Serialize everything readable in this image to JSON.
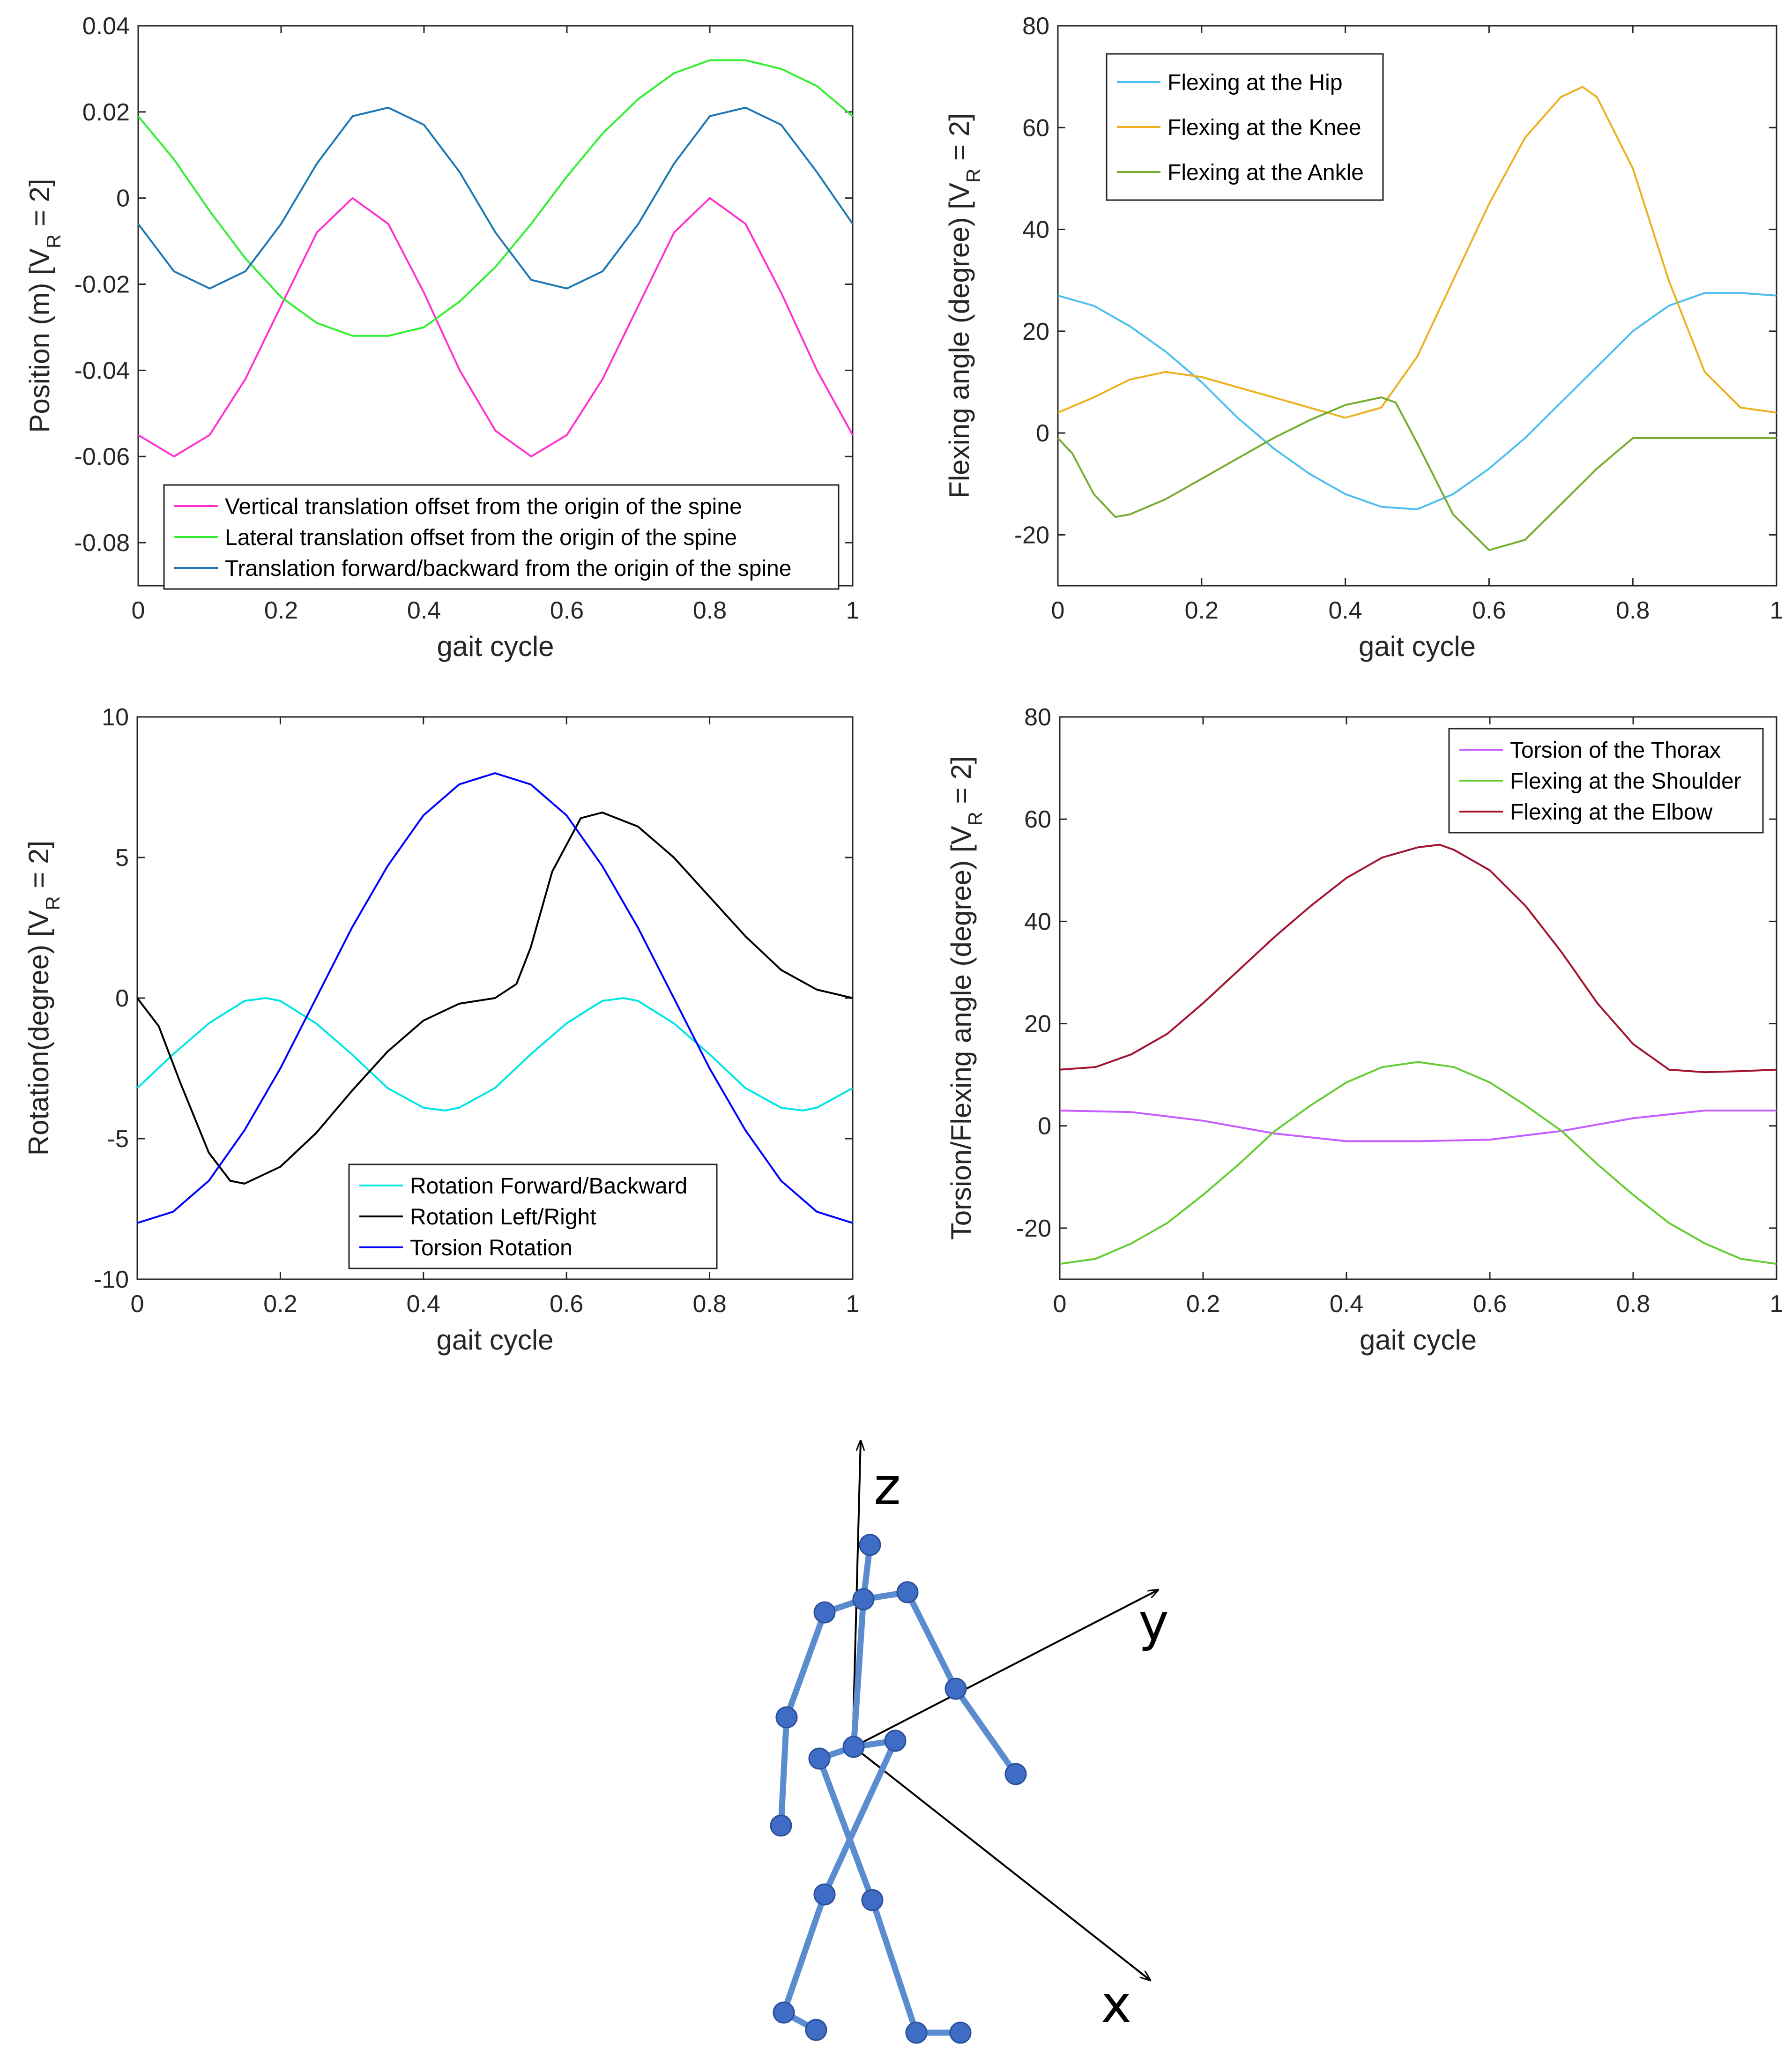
{
  "chart_data": [
    {
      "type": "line",
      "xlabel": "gait cycle",
      "ylabel": "Position (m) [V_R = 2]",
      "ylabel_parts": [
        "Position (m) [V",
        "R",
        " = 2]"
      ],
      "xlim": [
        0,
        1
      ],
      "ylim": [
        -0.09,
        0.04
      ],
      "xticks": [
        "0",
        "0.2",
        "0.4",
        "0.6",
        "0.8",
        "1"
      ],
      "xtick_values": [
        0,
        0.2,
        0.4,
        0.6,
        0.8,
        1
      ],
      "yticks": [
        "0.04",
        "0.02",
        "0",
        "-0.02",
        "-0.04",
        "-0.06",
        "-0.08"
      ],
      "ytick_values": [
        0.04,
        0.02,
        0,
        -0.02,
        -0.04,
        -0.06,
        -0.08
      ],
      "legend_location": "bottom-right",
      "series": [
        {
          "name": "Vertical translation offset from the origin of the spine",
          "color": "#ff33cc",
          "x": [
            0,
            0.05,
            0.1,
            0.15,
            0.2,
            0.25,
            0.3,
            0.35,
            0.4,
            0.45,
            0.5,
            0.55,
            0.6,
            0.65,
            0.7,
            0.75,
            0.8,
            0.85,
            0.9,
            0.95,
            1
          ],
          "y": [
            -0.055,
            -0.06,
            -0.055,
            -0.042,
            -0.025,
            -0.008,
            0,
            -0.006,
            -0.022,
            -0.04,
            -0.054,
            -0.06,
            -0.055,
            -0.042,
            -0.025,
            -0.008,
            0,
            -0.006,
            -0.022,
            -0.04,
            -0.055
          ]
        },
        {
          "name": "Lateral translation offset from the origin of the spine",
          "color": "#33ee33",
          "x": [
            0,
            0.05,
            0.1,
            0.15,
            0.2,
            0.25,
            0.3,
            0.35,
            0.4,
            0.45,
            0.5,
            0.55,
            0.6,
            0.65,
            0.7,
            0.75,
            0.8,
            0.85,
            0.9,
            0.95,
            1
          ],
          "y": [
            0.019,
            0.009,
            -0.003,
            -0.014,
            -0.023,
            -0.029,
            -0.032,
            -0.032,
            -0.03,
            -0.024,
            -0.016,
            -0.006,
            0.005,
            0.015,
            0.023,
            0.029,
            0.032,
            0.032,
            0.03,
            0.026,
            0.019
          ]
        },
        {
          "name": "Translation forward/backward from the origin of the spine",
          "color": "#1f77b4",
          "x": [
            0,
            0.05,
            0.1,
            0.15,
            0.2,
            0.25,
            0.3,
            0.35,
            0.4,
            0.45,
            0.5,
            0.55,
            0.6,
            0.65,
            0.7,
            0.75,
            0.8,
            0.85,
            0.9,
            0.95,
            1
          ],
          "y": [
            -0.006,
            -0.017,
            -0.021,
            -0.017,
            -0.006,
            0.008,
            0.019,
            0.021,
            0.017,
            0.006,
            -0.008,
            -0.019,
            -0.021,
            -0.017,
            -0.006,
            0.008,
            0.019,
            0.021,
            0.017,
            0.006,
            -0.006
          ]
        }
      ]
    },
    {
      "type": "line",
      "xlabel": "gait cycle",
      "ylabel": "Flexing angle (degree) [V_R = 2]",
      "ylabel_parts": [
        "Flexing angle (degree) [V",
        "R",
        " = 2]"
      ],
      "xlim": [
        0,
        1
      ],
      "ylim": [
        -30,
        80
      ],
      "xticks": [
        "0",
        "0.2",
        "0.4",
        "0.6",
        "0.8",
        "1"
      ],
      "xtick_values": [
        0,
        0.2,
        0.4,
        0.6,
        0.8,
        1
      ],
      "yticks": [
        "80",
        "60",
        "40",
        "20",
        "0",
        "-20"
      ],
      "ytick_values": [
        80,
        60,
        40,
        20,
        0,
        -20
      ],
      "legend_location": "top-left",
      "series": [
        {
          "name": "Flexing at the Hip",
          "color": "#4dbeee",
          "x": [
            0,
            0.05,
            0.1,
            0.15,
            0.2,
            0.25,
            0.3,
            0.35,
            0.4,
            0.45,
            0.5,
            0.55,
            0.6,
            0.65,
            0.7,
            0.75,
            0.8,
            0.85,
            0.9,
            0.95,
            1
          ],
          "y": [
            27,
            25,
            21,
            16,
            10,
            3,
            -3,
            -8,
            -12,
            -14.5,
            -15,
            -12,
            -7,
            -1,
            6,
            13,
            20,
            25,
            27.5,
            27.5,
            27
          ]
        },
        {
          "name": "Flexing at the Knee",
          "color": "#edb120",
          "x": [
            0,
            0.05,
            0.1,
            0.15,
            0.2,
            0.25,
            0.3,
            0.35,
            0.4,
            0.45,
            0.5,
            0.55,
            0.6,
            0.65,
            0.7,
            0.73,
            0.75,
            0.8,
            0.85,
            0.9,
            0.95,
            1
          ],
          "y": [
            4,
            7,
            10.5,
            12,
            11,
            9,
            7,
            5,
            3,
            5,
            15,
            30,
            45,
            58,
            66,
            68,
            66,
            52,
            30,
            12,
            5,
            4
          ]
        },
        {
          "name": "Flexing at the Ankle",
          "color": "#77ac30",
          "x": [
            0,
            0.02,
            0.05,
            0.08,
            0.1,
            0.15,
            0.2,
            0.25,
            0.3,
            0.35,
            0.4,
            0.45,
            0.47,
            0.5,
            0.55,
            0.6,
            0.65,
            0.7,
            0.75,
            0.8,
            0.85,
            0.9,
            0.95,
            1
          ],
          "y": [
            -1,
            -4,
            -12,
            -16.5,
            -16,
            -13,
            -9,
            -5,
            -1,
            2.5,
            5.5,
            7,
            6,
            -2,
            -16,
            -23,
            -21,
            -14,
            -7,
            -1,
            -1,
            -1,
            -1,
            -1
          ]
        }
      ]
    },
    {
      "type": "line",
      "xlabel": "gait cycle",
      "ylabel": "Rotation(degree) [V_R = 2]",
      "ylabel_parts": [
        "Rotation(degree) [V",
        "R",
        " = 2]"
      ],
      "xlim": [
        0,
        1
      ],
      "ylim": [
        -10,
        10
      ],
      "xticks": [
        "0",
        "0.2",
        "0.4",
        "0.6",
        "0.8",
        "1"
      ],
      "xtick_values": [
        0,
        0.2,
        0.4,
        0.6,
        0.8,
        1
      ],
      "yticks": [
        "10",
        "5",
        "0",
        "-5",
        "-10"
      ],
      "ytick_values": [
        10,
        5,
        0,
        -5,
        -10
      ],
      "legend_location": "bottom-center",
      "series": [
        {
          "name": "Rotation Forward/Backward",
          "color": "#00e5e5",
          "x": [
            0,
            0.05,
            0.1,
            0.15,
            0.18,
            0.2,
            0.25,
            0.3,
            0.35,
            0.4,
            0.43,
            0.45,
            0.5,
            0.55,
            0.6,
            0.65,
            0.68,
            0.7,
            0.75,
            0.8,
            0.85,
            0.9,
            0.93,
            0.95,
            1
          ],
          "y": [
            -3.2,
            -2,
            -0.9,
            -0.1,
            0,
            -0.1,
            -0.9,
            -2,
            -3.2,
            -3.9,
            -4,
            -3.9,
            -3.2,
            -2,
            -0.9,
            -0.1,
            0,
            -0.1,
            -0.9,
            -2,
            -3.2,
            -3.9,
            -4,
            -3.9,
            -3.2
          ]
        },
        {
          "name": "Rotation Left/Right",
          "color": "#000000",
          "x": [
            0,
            0.03,
            0.06,
            0.1,
            0.13,
            0.15,
            0.2,
            0.25,
            0.3,
            0.35,
            0.4,
            0.45,
            0.5,
            0.53,
            0.55,
            0.58,
            0.62,
            0.65,
            0.7,
            0.75,
            0.8,
            0.85,
            0.9,
            0.95,
            1
          ],
          "y": [
            0,
            -1,
            -3,
            -5.5,
            -6.5,
            -6.6,
            -6,
            -4.8,
            -3.3,
            -1.9,
            -0.8,
            -0.2,
            0,
            0.5,
            1.8,
            4.5,
            6.4,
            6.6,
            6.1,
            5,
            3.6,
            2.2,
            1,
            0.3,
            0
          ]
        },
        {
          "name": "Torsion Rotation",
          "color": "#0000ff",
          "x": [
            0,
            0.05,
            0.1,
            0.15,
            0.2,
            0.25,
            0.3,
            0.35,
            0.4,
            0.45,
            0.5,
            0.55,
            0.6,
            0.65,
            0.7,
            0.75,
            0.8,
            0.85,
            0.9,
            0.95,
            1
          ],
          "y": [
            -8,
            -7.6,
            -6.5,
            -4.7,
            -2.5,
            0,
            2.5,
            4.7,
            6.5,
            7.6,
            8,
            7.6,
            6.5,
            4.7,
            2.5,
            0,
            -2.5,
            -4.7,
            -6.5,
            -7.6,
            -8
          ]
        }
      ]
    },
    {
      "type": "line",
      "xlabel": "gait cycle",
      "ylabel": "Torsion/Flexing angle (degree) [V_R = 2]",
      "ylabel_parts": [
        "Torsion/Flexing angle (degree) [V",
        "R",
        " = 2]"
      ],
      "xlim": [
        0,
        1
      ],
      "ylim": [
        -30,
        80
      ],
      "xticks": [
        "0",
        "0.2",
        "0.4",
        "0.6",
        "0.8",
        "1"
      ],
      "xtick_values": [
        0,
        0.2,
        0.4,
        0.6,
        0.8,
        1
      ],
      "yticks": [
        "80",
        "60",
        "40",
        "20",
        "0",
        "-20"
      ],
      "ytick_values": [
        80,
        60,
        40,
        20,
        0,
        -20
      ],
      "legend_location": "top-right",
      "series": [
        {
          "name": "Torsion of the Thorax",
          "color": "#c65cff",
          "x": [
            0,
            0.1,
            0.2,
            0.3,
            0.4,
            0.5,
            0.6,
            0.7,
            0.8,
            0.9,
            1
          ],
          "y": [
            3,
            2.7,
            1,
            -1.5,
            -3,
            -3,
            -2.7,
            -1,
            1.5,
            3,
            3
          ]
        },
        {
          "name": "Flexing at the Shoulder",
          "color": "#66cc33",
          "x": [
            0,
            0.05,
            0.1,
            0.15,
            0.2,
            0.25,
            0.3,
            0.35,
            0.4,
            0.45,
            0.5,
            0.55,
            0.6,
            0.65,
            0.7,
            0.75,
            0.8,
            0.85,
            0.9,
            0.95,
            1
          ],
          "y": [
            -27,
            -26,
            -23,
            -19,
            -13.5,
            -7.5,
            -1,
            4,
            8.5,
            11.5,
            12.5,
            11.5,
            8.5,
            4,
            -1,
            -7.5,
            -13.5,
            -19,
            -23,
            -26,
            -27
          ]
        },
        {
          "name": "Flexing at the Elbow",
          "color": "#a2142f",
          "x": [
            0,
            0.05,
            0.1,
            0.15,
            0.2,
            0.25,
            0.3,
            0.35,
            0.4,
            0.45,
            0.5,
            0.53,
            0.55,
            0.6,
            0.65,
            0.7,
            0.75,
            0.8,
            0.85,
            0.9,
            0.95,
            1
          ],
          "y": [
            11,
            11.5,
            14,
            18,
            24,
            30.5,
            37,
            43,
            48.5,
            52.5,
            54.5,
            55,
            54,
            50,
            43,
            34,
            24,
            16,
            11,
            10.5,
            10.7,
            11
          ]
        }
      ]
    }
  ],
  "skeleton": {
    "axis_labels": {
      "z": "z",
      "y": "y",
      "x": "x"
    },
    "line_color": "#5b8ccf",
    "joint_color": "#3f6cc4",
    "axis_color": "#000000"
  }
}
